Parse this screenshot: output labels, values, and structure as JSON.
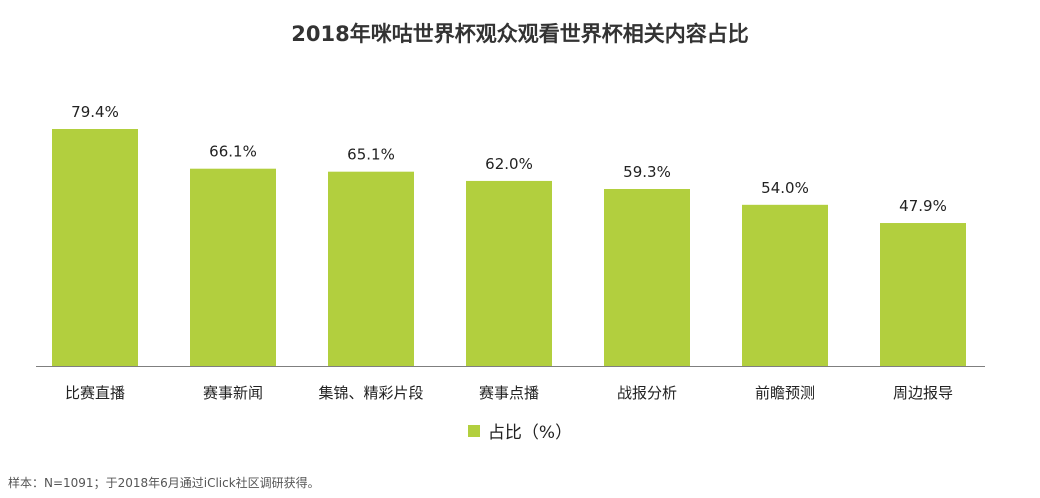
{
  "colors": {
    "bar": "#b2cf3e",
    "axis": "#7f7f7f"
  },
  "chart_data": {
    "type": "bar",
    "title": "2018年咪咕世界杯观众观看世界杯相关内容占比",
    "categories": [
      "比赛直播",
      "赛事新闻",
      "集锦、精彩片段",
      "赛事点播",
      "战报分析",
      "前瞻预测",
      "周边报导"
    ],
    "series": [
      {
        "name": "占比（%）",
        "values": [
          79.4,
          66.1,
          65.1,
          62.0,
          59.3,
          54.0,
          47.9
        ]
      }
    ],
    "value_labels": [
      "79.4%",
      "66.1%",
      "65.1%",
      "62.0%",
      "59.3%",
      "54.0%",
      "47.9%"
    ],
    "ylim": [
      0,
      79.4
    ],
    "grid": false,
    "legend_position": "bottom-center",
    "xlabel": "",
    "ylabel": ""
  },
  "footer": {
    "source": "样本：N=1091；于2018年6月通过iClick社区调研获得。"
  }
}
